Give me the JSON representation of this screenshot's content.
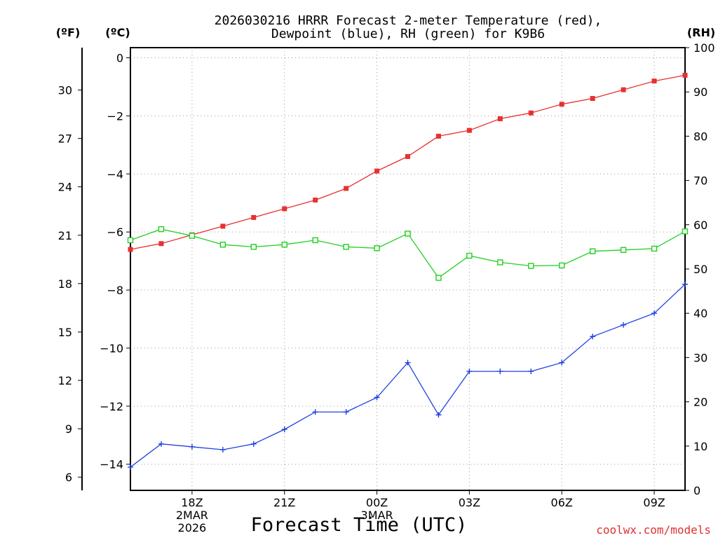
{
  "chart_data": {
    "type": "line",
    "title": "2026030216 HRRR Forecast 2-meter Temperature (red),",
    "subtitle": "Dewpoint (blue), RH (green) for K9B6",
    "xlabel": "Forecast Time (UTC)",
    "credit": "coolwx.com/models",
    "units": {
      "fahrenheit": "(ºF)",
      "celsius": "(ºC)",
      "rh": "(RH)"
    },
    "x_hours": [
      0,
      1,
      2,
      3,
      4,
      5,
      6,
      7,
      8,
      9,
      10,
      11,
      12,
      13,
      14,
      15,
      16,
      17,
      18
    ],
    "x_ticks": [
      {
        "hour": 2,
        "labels": [
          "18Z",
          "2MAR",
          "2026"
        ]
      },
      {
        "hour": 5,
        "labels": [
          "21Z"
        ]
      },
      {
        "hour": 8,
        "labels": [
          "00Z",
          "3MAR"
        ]
      },
      {
        "hour": 11,
        "labels": [
          "03Z"
        ]
      },
      {
        "hour": 14,
        "labels": [
          "06Z"
        ]
      },
      {
        "hour": 17,
        "labels": [
          "09Z"
        ]
      }
    ],
    "x_range": [
      0,
      18
    ],
    "celsius_axis": {
      "range": [
        -14.9,
        0.35
      ],
      "ticks": [
        0,
        -2,
        -4,
        -6,
        -8,
        -10,
        -12,
        -14
      ]
    },
    "fahrenheit_axis": {
      "ticks": [
        30,
        27,
        24,
        21,
        18,
        15,
        12,
        9,
        6
      ]
    },
    "rh_axis": {
      "range": [
        0,
        100
      ],
      "ticks": [
        0,
        10,
        20,
        30,
        40,
        50,
        60,
        70,
        80,
        90,
        100
      ]
    },
    "grid": true,
    "series": [
      {
        "name": "Temperature",
        "units": "C",
        "color": "#e83030",
        "marker": "filled-square",
        "values": [
          -6.6,
          -6.4,
          -6.1,
          -5.8,
          -5.5,
          -5.2,
          -4.9,
          -4.5,
          -3.9,
          -3.4,
          -2.7,
          -2.5,
          -2.1,
          -1.9,
          -1.6,
          -1.4,
          -1.1,
          -0.8,
          -0.6
        ]
      },
      {
        "name": "Dewpoint",
        "units": "C",
        "color": "#2040e0",
        "marker": "plus",
        "values": [
          -14.1,
          -13.3,
          -13.4,
          -13.5,
          -13.3,
          -12.8,
          -12.2,
          -12.2,
          -11.7,
          -10.5,
          -12.3,
          -10.8,
          -10.8,
          -10.8,
          -10.5,
          -9.6,
          -9.2,
          -8.8,
          -7.8
        ]
      },
      {
        "name": "RH",
        "units": "%",
        "color": "#20d020",
        "marker": "open-square",
        "values": [
          56.5,
          59,
          57.5,
          55.5,
          55,
          55.5,
          56.5,
          55,
          54.7,
          58,
          48,
          53,
          51.5,
          50.7,
          50.8,
          54,
          54.3,
          54.6,
          58.5
        ]
      }
    ]
  }
}
